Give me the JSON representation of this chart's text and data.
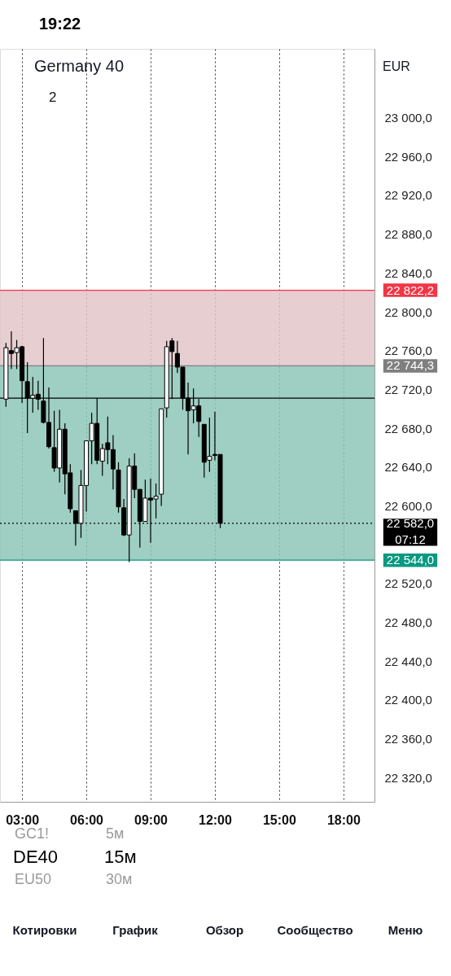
{
  "chart_data": {
    "type": "candlestick",
    "title": "Germany 40",
    "x": [
      2.25,
      2.5,
      2.75,
      3,
      3.25,
      3.5,
      3.75,
      4,
      4.25,
      4.5,
      4.75,
      5,
      5.25,
      5.5,
      5.75,
      6,
      6.25,
      6.5,
      6.75,
      7,
      7.25,
      7.5,
      7.75,
      8,
      8.25,
      8.5,
      8.75,
      9,
      9.25,
      9.5,
      9.75,
      10,
      10.25,
      10.5,
      10.75,
      11,
      11.25,
      11.5,
      11.75,
      12,
      12.25
    ],
    "ohlc": [
      [
        22710,
        22768,
        22702,
        22763
      ],
      [
        22760,
        22780,
        22741,
        22757
      ],
      [
        22758,
        22771,
        22741,
        22763
      ],
      [
        22764,
        22765,
        22706,
        22729
      ],
      [
        22728,
        22748,
        22675,
        22711
      ],
      [
        22711,
        22733,
        22696,
        22714
      ],
      [
        22715,
        22729,
        22699,
        22710
      ],
      [
        22708,
        22773,
        22685,
        22686
      ],
      [
        22686,
        22722,
        22659,
        22661
      ],
      [
        22660,
        22698,
        22635,
        22639
      ],
      [
        22639,
        22699,
        22624,
        22679
      ],
      [
        22679,
        22685,
        22612,
        22633
      ],
      [
        22634,
        22643,
        22593,
        22597
      ],
      [
        22595,
        22595,
        22559,
        22582
      ],
      [
        22582,
        22637,
        22567,
        22621
      ],
      [
        22621,
        22667,
        22594,
        22667
      ],
      [
        22667,
        22696,
        22643,
        22685
      ],
      [
        22685,
        22711,
        22643,
        22647
      ],
      [
        22646,
        22664,
        22631,
        22659
      ],
      [
        22665,
        22692,
        22643,
        22658
      ],
      [
        22658,
        22673,
        22617,
        22638
      ],
      [
        22637,
        22645,
        22593,
        22599
      ],
      [
        22598,
        22607,
        22569,
        22570
      ],
      [
        22570,
        22649,
        22542,
        22641
      ],
      [
        22641,
        22654,
        22608,
        22617
      ],
      [
        22617,
        22617,
        22557,
        22584
      ],
      [
        22584,
        22627,
        22584,
        22608
      ],
      [
        22608,
        22628,
        22562,
        22606
      ],
      [
        22607,
        22623,
        22587,
        22610
      ],
      [
        22612,
        22700,
        22600,
        22700
      ],
      [
        22701,
        22770,
        22691,
        22764
      ],
      [
        22770,
        22773,
        22710,
        22759
      ],
      [
        22757,
        22770,
        22737,
        22743
      ],
      [
        22743,
        22743,
        22699,
        22711
      ],
      [
        22711,
        22727,
        22653,
        22698
      ],
      [
        22699,
        22721,
        22685,
        22703
      ],
      [
        22703,
        22710,
        22671,
        22687
      ],
      [
        22684,
        22684,
        22629,
        22645
      ],
      [
        22647,
        22691,
        22635,
        22651
      ],
      [
        22653,
        22697,
        22647,
        22652
      ],
      [
        22653,
        22653,
        22577,
        22582
      ]
    ],
    "colors": [
      "#ffffff",
      "#000000",
      "#ffffff",
      "#000000",
      "#000000",
      "#ffffff",
      "#000000",
      "#000000",
      "#000000",
      "#000000",
      "#ffffff",
      "#000000",
      "#000000",
      "#000000",
      "#ffffff",
      "#ffffff",
      "#ffffff",
      "#000000",
      "#ffffff",
      "#000000",
      "#000000",
      "#000000",
      "#000000",
      "#ffffff",
      "#000000",
      "#000000",
      "#ffffff",
      "#000000",
      "#ffffff",
      "#ffffff",
      "#ffffff",
      "#000000",
      "#000000",
      "#000000",
      "#000000",
      "#ffffff",
      "#000000",
      "#000000",
      "#ffffff",
      "#000000",
      "#000000"
    ],
    "xlim": [
      1.97,
      19.45
    ],
    "xticks": [
      {
        "value": 3,
        "label": "03:00"
      },
      {
        "value": 6,
        "label": "06:00"
      },
      {
        "value": 9,
        "label": "09:00"
      },
      {
        "value": 12,
        "label": "12:00"
      },
      {
        "value": 15,
        "label": "15:00"
      },
      {
        "value": 18,
        "label": "18:00"
      }
    ],
    "ylim": [
      22295,
      23071
    ],
    "yticks": [
      {
        "value": 22320,
        "label": "22 320,0"
      },
      {
        "value": 22360,
        "label": "22 360,0"
      },
      {
        "value": 22400,
        "label": "22 400,0"
      },
      {
        "value": 22440,
        "label": "22 440,0"
      },
      {
        "value": 22480,
        "label": "22 480,0"
      },
      {
        "value": 22520,
        "label": "22 520,0"
      },
      {
        "value": 22600,
        "label": "22 600,0"
      },
      {
        "value": 22640,
        "label": "22 640,0"
      },
      {
        "value": 22680,
        "label": "22 680,0"
      },
      {
        "value": 22720,
        "label": "22 720,0"
      },
      {
        "value": 22760,
        "label": "22 760,0"
      },
      {
        "value": 22800,
        "label": "22 800,0"
      },
      {
        "value": 22840,
        "label": "22 840,0"
      },
      {
        "value": 22880,
        "label": "22 880,0"
      },
      {
        "value": 22920,
        "label": "22 920,0"
      },
      {
        "value": 22960,
        "label": "22 960,0"
      },
      {
        "value": 23000,
        "label": "23 000,0"
      }
    ],
    "grid": "x",
    "bands": [
      {
        "axis": "y",
        "from": 22744.3,
        "to": 22822.2,
        "color": "#e3c6c8"
      },
      {
        "axis": "y",
        "from": 22544,
        "to": 22744.3,
        "color": "#8ec5b8"
      }
    ],
    "ref_lines": [
      {
        "axis": "y",
        "value": 22822.2,
        "label": "22 822,2",
        "color": "#f23645"
      },
      {
        "axis": "y",
        "value": 22744.3,
        "label": "22 744,3",
        "color": "#7f7f7f"
      },
      {
        "axis": "y",
        "value": 22711,
        "label": null,
        "color": "#000000"
      },
      {
        "axis": "y",
        "value": 22582,
        "label": "22 582,0\n07:12",
        "color": "#000000",
        "line_style": "dotted"
      },
      {
        "axis": "y",
        "value": 22544,
        "label": "22 544,0",
        "color": "#089981"
      }
    ],
    "annotations": [
      "19:22",
      "2",
      "EUR",
      "GC1!",
      "5м",
      "DE40",
      "15м",
      "EU50",
      "30м",
      "Котировки",
      "График",
      "Обзор",
      "Сообщество",
      "Меню"
    ]
  }
}
